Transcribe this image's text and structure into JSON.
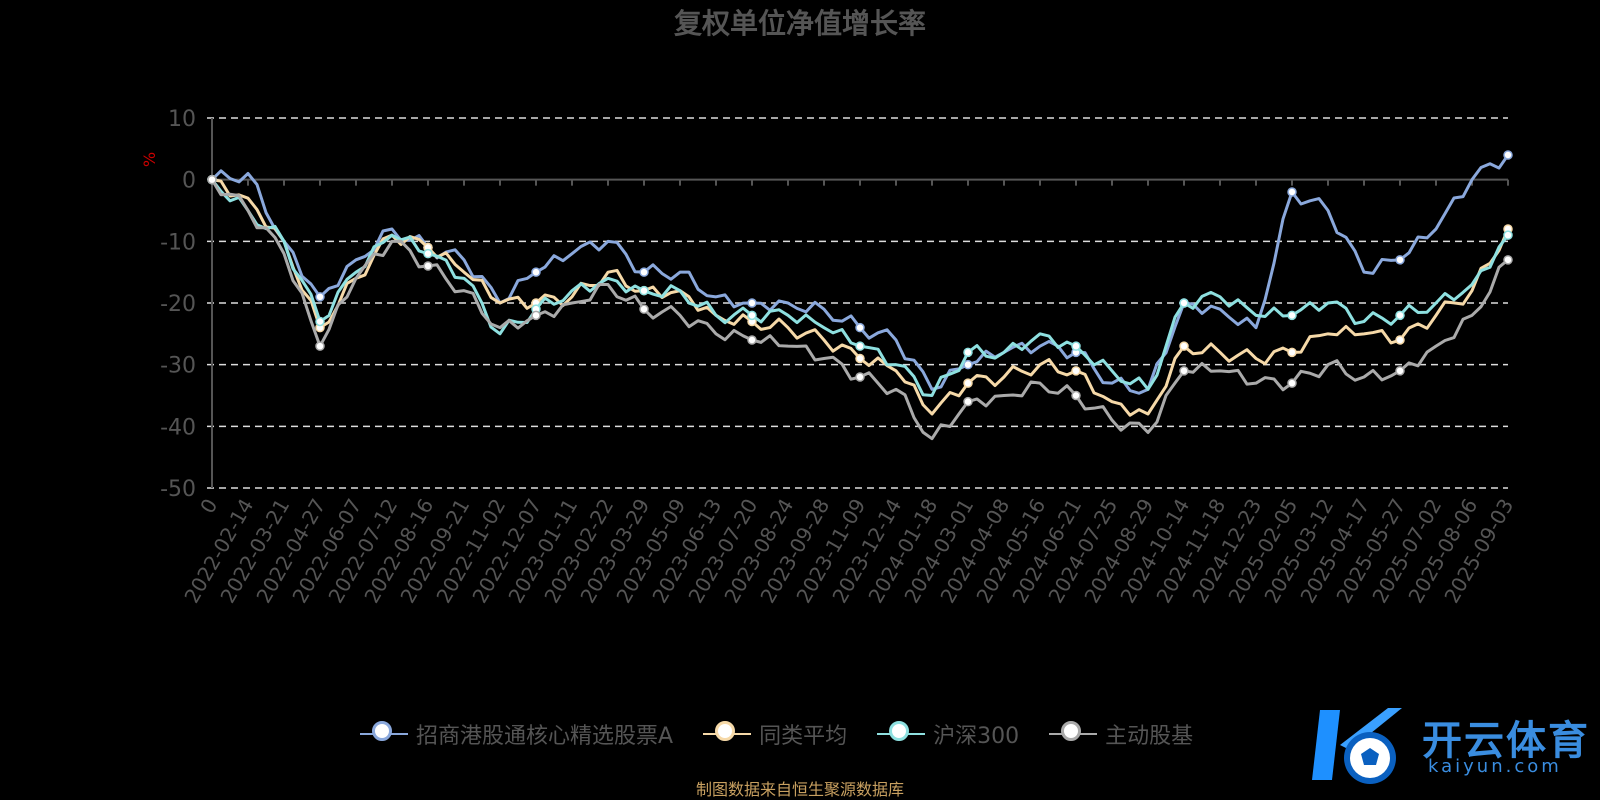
{
  "chart_data": {
    "type": "line",
    "title": "复权单位净值增长率",
    "ylabel": "%",
    "ylim": [
      -50,
      10
    ],
    "yticks": [
      10,
      0,
      -10,
      -20,
      -30,
      -40,
      -50
    ],
    "xticks": [
      "0",
      "2022-02-14",
      "2022-03-21",
      "2022-04-27",
      "2022-06-07",
      "2022-07-12",
      "2022-08-16",
      "2022-09-21",
      "2022-11-02",
      "2022-12-07",
      "2023-01-11",
      "2023-02-22",
      "2023-03-29",
      "2023-05-09",
      "2023-06-13",
      "2023-07-20",
      "2023-08-24",
      "2023-09-28",
      "2023-11-09",
      "2023-12-14",
      "2024-01-18",
      "2024-03-01",
      "2024-04-08",
      "2024-05-16",
      "2024-06-21",
      "2024-07-25",
      "2024-08-29",
      "2024-10-14",
      "2024-11-18",
      "2024-12-23",
      "2025-02-05",
      "2025-03-12",
      "2025-04-17",
      "2025-05-27",
      "2025-07-02",
      "2025-08-06",
      "2025-09-03"
    ],
    "grid": "dashed horizontal",
    "legend_position": "bottom",
    "series": [
      {
        "name": "招商港股通核心精选股票A",
        "color": "#8aa8dc",
        "values": [
          0,
          1,
          -10,
          -19,
          -13,
          -8,
          -11,
          -13,
          -20,
          -15,
          -12,
          -10,
          -15,
          -15,
          -19,
          -20,
          -20,
          -21,
          -24,
          -26,
          -34,
          -30,
          -28,
          -27,
          -28,
          -33,
          -34,
          -20,
          -21,
          -24,
          -2,
          -5,
          -15,
          -13,
          -8,
          0,
          4
        ]
      },
      {
        "name": "同类平均",
        "color": "#f6d9a8",
        "values": [
          0,
          -3,
          -10,
          -24,
          -16,
          -9,
          -11,
          -15,
          -20,
          -20,
          -19,
          -15,
          -18,
          -18,
          -22,
          -23,
          -24,
          -26,
          -29,
          -31,
          -38,
          -33,
          -32,
          -30,
          -31,
          -36,
          -38,
          -27,
          -28,
          -29,
          -28,
          -25,
          -25,
          -26,
          -22,
          -18,
          -8
        ]
      },
      {
        "name": "沪深300",
        "color": "#8ee0e0",
        "values": [
          0,
          -5,
          -10,
          -23,
          -15,
          -9,
          -12,
          -16,
          -25,
          -21,
          -18,
          -16,
          -18,
          -18,
          -22,
          -22,
          -22,
          -24,
          -27,
          -30,
          -35,
          -28,
          -28,
          -25,
          -27,
          -31,
          -34,
          -20,
          -19,
          -22,
          -22,
          -20,
          -23,
          -22,
          -20,
          -17,
          -9
        ]
      },
      {
        "name": "主动股基",
        "color": "#aaaaaa",
        "values": [
          0,
          -5,
          -12,
          -27,
          -16,
          -10,
          -14,
          -18,
          -24,
          -22,
          -20,
          -17,
          -21,
          -22,
          -25,
          -26,
          -27,
          -29,
          -32,
          -34,
          -42,
          -36,
          -35,
          -33,
          -35,
          -39,
          -41,
          -31,
          -31,
          -33,
          -33,
          -30,
          -32,
          -31,
          -27,
          -22,
          -13
        ]
      }
    ]
  },
  "source_note": "制图数据来自恒生聚源数据库",
  "logo": {
    "cn": "开云体育",
    "en": "kaiyun.com"
  }
}
